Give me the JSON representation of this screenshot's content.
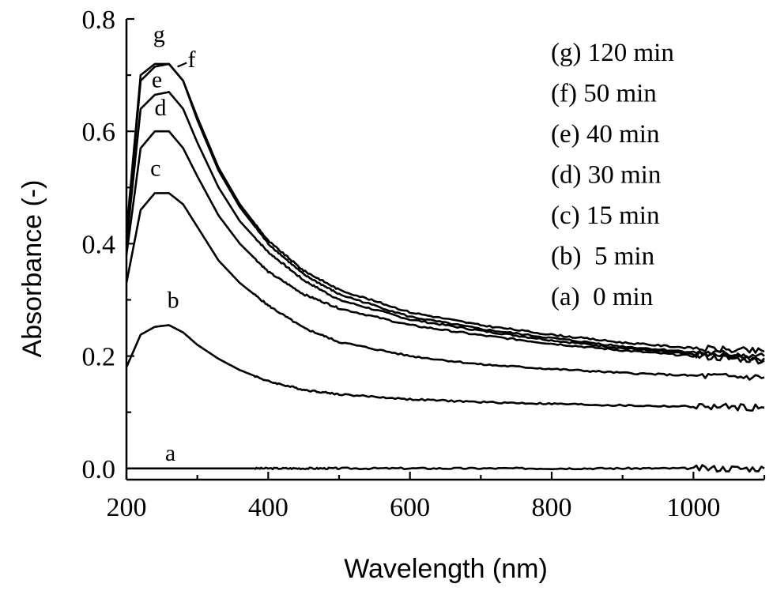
{
  "chart_data": {
    "type": "line",
    "title": "",
    "xlabel": "Wavelength (nm)",
    "ylabel": "Absorbance (-)",
    "xlim": [
      200,
      1100
    ],
    "ylim": [
      -0.02,
      0.8
    ],
    "x_ticks": [
      "200",
      "400",
      "600",
      "800",
      "1000"
    ],
    "x_tick_values": [
      200,
      400,
      600,
      800,
      1000
    ],
    "y_ticks": [
      "0.0",
      "0.2",
      "0.4",
      "0.6",
      "0.8"
    ],
    "y_tick_values": [
      0.0,
      0.2,
      0.4,
      0.6,
      0.8
    ],
    "grid": false,
    "legend_position": "top-right",
    "legend": [
      "(g) 120 min",
      "(f) 50 min",
      "(e) 40 min",
      "(d) 30 min",
      "(c) 15 min",
      "(b)  5 min",
      "(a)  0 min"
    ],
    "x": [
      200,
      220,
      240,
      260,
      280,
      300,
      330,
      360,
      400,
      450,
      500,
      600,
      700,
      800,
      900,
      1000,
      1100
    ],
    "series": [
      {
        "name": "a",
        "values": [
          0.0,
          0.0,
          0.0,
          0.0,
          0.0,
          0.0,
          0.0,
          0.0,
          0.0,
          0.0,
          0.0,
          0.0,
          0.0,
          0.0,
          0.0,
          0.0,
          0.0
        ]
      },
      {
        "name": "b",
        "values": [
          0.18,
          0.238,
          0.252,
          0.255,
          0.242,
          0.22,
          0.195,
          0.175,
          0.155,
          0.14,
          0.132,
          0.123,
          0.118,
          0.115,
          0.112,
          0.11,
          0.108
        ]
      },
      {
        "name": "c",
        "values": [
          0.33,
          0.46,
          0.49,
          0.49,
          0.47,
          0.43,
          0.37,
          0.33,
          0.29,
          0.25,
          0.225,
          0.2,
          0.185,
          0.177,
          0.17,
          0.165,
          0.162
        ]
      },
      {
        "name": "d",
        "values": [
          0.38,
          0.57,
          0.6,
          0.6,
          0.57,
          0.52,
          0.45,
          0.4,
          0.35,
          0.31,
          0.285,
          0.255,
          0.237,
          0.222,
          0.21,
          0.2,
          0.192
        ]
      },
      {
        "name": "e",
        "values": [
          0.4,
          0.64,
          0.665,
          0.67,
          0.64,
          0.58,
          0.5,
          0.44,
          0.385,
          0.335,
          0.3,
          0.265,
          0.245,
          0.228,
          0.214,
          0.203,
          0.196
        ]
      },
      {
        "name": "f",
        "values": [
          0.41,
          0.69,
          0.715,
          0.72,
          0.69,
          0.62,
          0.53,
          0.465,
          0.4,
          0.345,
          0.31,
          0.27,
          0.248,
          0.232,
          0.217,
          0.207,
          0.2
        ]
      },
      {
        "name": "g",
        "values": [
          0.42,
          0.7,
          0.72,
          0.72,
          0.69,
          0.625,
          0.535,
          0.47,
          0.405,
          0.352,
          0.318,
          0.278,
          0.255,
          0.238,
          0.224,
          0.214,
          0.208
        ]
      }
    ]
  }
}
